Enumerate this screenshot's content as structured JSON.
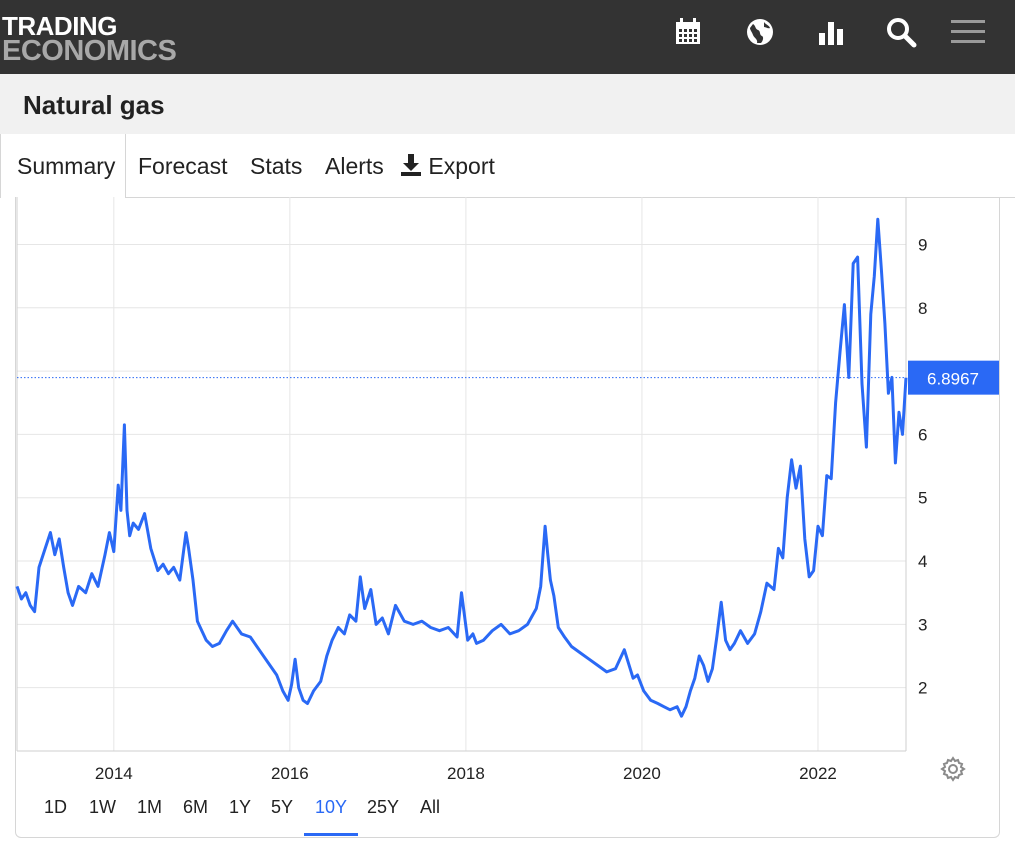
{
  "header": {
    "logo_line1": "TRADING",
    "logo_line2": "ECONOMICS",
    "icons": [
      "calendar-icon",
      "globe-icon",
      "bar-chart-icon",
      "search-icon",
      "menu-icon"
    ]
  },
  "page": {
    "title": "Natural gas"
  },
  "tabs": [
    {
      "label": "Summary",
      "active": true
    },
    {
      "label": "Forecast"
    },
    {
      "label": "Stats"
    },
    {
      "label": "Alerts"
    },
    {
      "label": "Export",
      "icon": "download-icon"
    }
  ],
  "ranges": [
    {
      "label": "1D"
    },
    {
      "label": "1W"
    },
    {
      "label": "1M"
    },
    {
      "label": "6M"
    },
    {
      "label": "1Y"
    },
    {
      "label": "5Y"
    },
    {
      "label": "10Y",
      "active": true
    },
    {
      "label": "25Y"
    },
    {
      "label": "All"
    }
  ],
  "colors": {
    "line": "#2a69f5",
    "header_bg": "#333333",
    "price_label_bg": "#2a69f5"
  },
  "chart_data": {
    "type": "line",
    "xlabel": "",
    "ylabel": "",
    "x_ticks": [
      "2014",
      "2016",
      "2018",
      "2020",
      "2022"
    ],
    "y_ticks": [
      2,
      3,
      4,
      5,
      6,
      8,
      9
    ],
    "ylim": [
      1,
      9.75
    ],
    "xlim": [
      2012.9,
      2023.0
    ],
    "grid": true,
    "last_value_label": "6.8967",
    "last_value": 6.8967,
    "series": [
      {
        "x": [
          2012.9,
          2012.95,
          2013.0,
          2013.05,
          2013.1,
          2013.15,
          2013.22,
          2013.28,
          2013.33,
          2013.38,
          2013.43,
          2013.48,
          2013.53,
          2013.6,
          2013.68,
          2013.75,
          2013.82,
          2013.9,
          2013.95,
          2014.0,
          2014.05,
          2014.08,
          2014.12,
          2014.15,
          2014.18,
          2014.22,
          2014.28,
          2014.35,
          2014.42,
          2014.5,
          2014.56,
          2014.62,
          2014.68,
          2014.75,
          2014.82,
          2014.85,
          2014.9,
          2014.95,
          2015.0,
          2015.05,
          2015.12,
          2015.2,
          2015.28,
          2015.35,
          2015.45,
          2015.55,
          2015.65,
          2015.75,
          2015.85,
          2015.92,
          2015.98,
          2016.02,
          2016.06,
          2016.1,
          2016.15,
          2016.2,
          2016.27,
          2016.35,
          2016.42,
          2016.48,
          2016.55,
          2016.62,
          2016.68,
          2016.75,
          2016.8,
          2016.85,
          2016.92,
          2016.98,
          2017.05,
          2017.12,
          2017.2,
          2017.3,
          2017.4,
          2017.5,
          2017.6,
          2017.7,
          2017.8,
          2017.9,
          2017.95,
          2018.02,
          2018.08,
          2018.12,
          2018.2,
          2018.3,
          2018.4,
          2018.5,
          2018.6,
          2018.7,
          2018.8,
          2018.85,
          2018.9,
          2018.93,
          2018.96,
          2019.0,
          2019.05,
          2019.12,
          2019.2,
          2019.3,
          2019.4,
          2019.5,
          2019.6,
          2019.7,
          2019.8,
          2019.9,
          2019.95,
          2020.02,
          2020.1,
          2020.18,
          2020.25,
          2020.32,
          2020.4,
          2020.45,
          2020.5,
          2020.55,
          2020.6,
          2020.65,
          2020.7,
          2020.75,
          2020.8,
          2020.85,
          2020.9,
          2020.95,
          2021.0,
          2021.05,
          2021.12,
          2021.2,
          2021.28,
          2021.35,
          2021.42,
          2021.5,
          2021.55,
          2021.6,
          2021.65,
          2021.7,
          2021.75,
          2021.8,
          2021.85,
          2021.9,
          2021.95,
          2022.0,
          2022.05,
          2022.1,
          2022.15,
          2022.2,
          2022.25,
          2022.3,
          2022.35,
          2022.4,
          2022.45,
          2022.5,
          2022.55,
          2022.6,
          2022.64,
          2022.68,
          2022.72,
          2022.76,
          2022.8,
          2022.84,
          2022.88,
          2022.92,
          2022.96,
          2023.0
        ],
        "y": [
          3.6,
          3.4,
          3.5,
          3.3,
          3.2,
          3.9,
          4.2,
          4.45,
          4.1,
          4.35,
          3.9,
          3.5,
          3.3,
          3.6,
          3.5,
          3.8,
          3.6,
          4.1,
          4.45,
          4.15,
          5.2,
          4.8,
          6.15,
          4.8,
          4.4,
          4.6,
          4.5,
          4.75,
          4.2,
          3.85,
          3.95,
          3.8,
          3.9,
          3.7,
          4.45,
          4.2,
          3.7,
          3.05,
          2.9,
          2.75,
          2.65,
          2.7,
          2.9,
          3.05,
          2.85,
          2.8,
          2.6,
          2.4,
          2.2,
          1.95,
          1.8,
          2.05,
          2.45,
          2.0,
          1.8,
          1.75,
          1.95,
          2.1,
          2.5,
          2.75,
          2.95,
          2.85,
          3.15,
          3.05,
          3.75,
          3.25,
          3.55,
          3.0,
          3.1,
          2.85,
          3.3,
          3.05,
          3.0,
          3.05,
          2.95,
          2.9,
          2.95,
          2.8,
          3.5,
          2.75,
          2.85,
          2.7,
          2.75,
          2.9,
          3.0,
          2.85,
          2.9,
          3.0,
          3.25,
          3.6,
          4.55,
          4.1,
          3.7,
          3.45,
          2.95,
          2.8,
          2.65,
          2.55,
          2.45,
          2.35,
          2.25,
          2.3,
          2.6,
          2.15,
          2.2,
          1.95,
          1.8,
          1.75,
          1.7,
          1.65,
          1.7,
          1.55,
          1.7,
          1.95,
          2.15,
          2.5,
          2.35,
          2.1,
          2.3,
          2.8,
          3.35,
          2.75,
          2.6,
          2.7,
          2.9,
          2.7,
          2.85,
          3.2,
          3.65,
          3.55,
          4.2,
          4.05,
          5.0,
          5.6,
          5.15,
          5.5,
          4.35,
          3.75,
          3.85,
          4.55,
          4.4,
          5.35,
          5.3,
          6.5,
          7.3,
          8.05,
          6.9,
          8.7,
          8.8,
          6.8,
          5.8,
          7.9,
          8.5,
          9.4,
          8.6,
          7.75,
          6.65,
          6.9,
          5.55,
          6.35,
          6.0,
          6.8967
        ]
      }
    ]
  }
}
